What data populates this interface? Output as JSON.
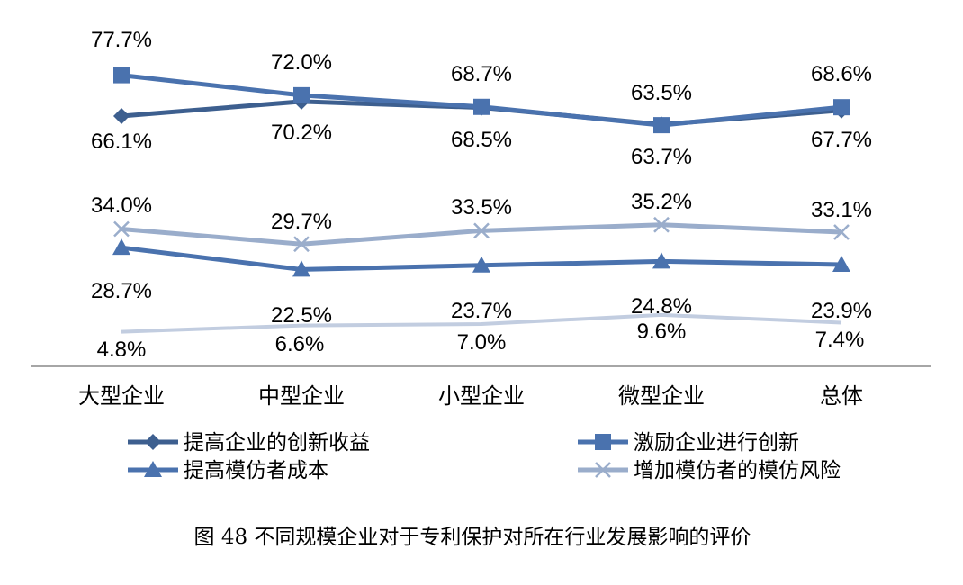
{
  "chart_data": {
    "type": "line",
    "categories": [
      "大型企业",
      "中型企业",
      "小型企业",
      "微型企业",
      "总体"
    ],
    "series": [
      {
        "name": "提高企业的创新收益",
        "values": [
          66.1,
          70.2,
          68.5,
          63.7,
          67.7
        ],
        "labels": [
          "66.1%",
          "70.2%",
          "68.5%",
          "63.7%",
          "67.7%"
        ],
        "color": "#3D5F8F",
        "marker": "diamond"
      },
      {
        "name": "激励企业进行创新",
        "values": [
          77.7,
          72.0,
          68.7,
          63.5,
          68.6
        ],
        "labels": [
          "77.7%",
          "72.0%",
          "68.7%",
          "63.5%",
          "68.6%"
        ],
        "color": "#4A72AE",
        "marker": "square"
      },
      {
        "name": "提高模仿者成本",
        "values": [
          28.7,
          22.5,
          23.7,
          24.8,
          23.9
        ],
        "labels": [
          "28.7%",
          "22.5%",
          "23.7%",
          "24.8%",
          "23.9%"
        ],
        "color": "#4A72AE",
        "marker": "triangle"
      },
      {
        "name": "增加模仿者的模仿风险",
        "values": [
          34.0,
          29.7,
          33.5,
          35.2,
          33.1
        ],
        "labels": [
          "34.0%",
          "29.7%",
          "33.5%",
          "35.2%",
          "33.1%"
        ],
        "color": "#9AADCB",
        "marker": "x"
      },
      {
        "name": "",
        "values": [
          4.8,
          6.6,
          7.0,
          9.6,
          7.4
        ],
        "labels": [
          "4.8%",
          "6.6%",
          "7.0%",
          "9.6%",
          "7.4%"
        ],
        "color": "#C2CDE0",
        "marker": "none"
      }
    ],
    "ylim": [
      0,
      100
    ],
    "grid": false,
    "legend_position": "bottom"
  },
  "caption": "图 48 不同规模企业对于专利保护对所在行业发展影响的评价"
}
